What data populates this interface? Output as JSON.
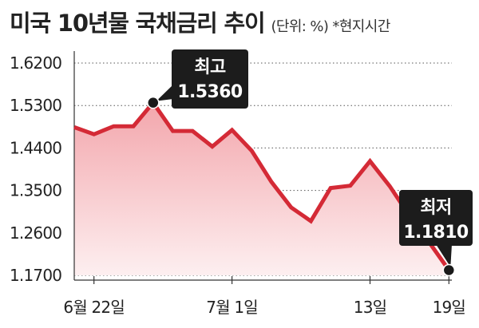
{
  "title": "미국 10년물 국채금리 추이",
  "subtitle": "(단위: %) *현지시간",
  "colors": {
    "line": "#d42a36",
    "area_top": "#f3a6ac",
    "area_bottom": "#fdeff0",
    "grid": "#555555",
    "callout_bg": "#1c1c1c",
    "marker": "#1a1a1a"
  },
  "chart_data": {
    "type": "area",
    "title": "미국 10년물 국채금리 추이",
    "subtitle": "(단위: %) *현지시간",
    "ylim": [
      1.17,
      1.62
    ],
    "yticks": [
      "1.6200",
      "1.5300",
      "1.4400",
      "1.3500",
      "1.2600",
      "1.1700"
    ],
    "ytick_values": [
      1.62,
      1.53,
      1.44,
      1.35,
      1.26,
      1.17
    ],
    "xticks": [
      {
        "label": "6월 22일",
        "index": 1
      },
      {
        "label": "7월 1일",
        "index": 8
      },
      {
        "label": "13일",
        "index": 15
      },
      {
        "label": "19일",
        "index": 19
      }
    ],
    "grid": true,
    "series": [
      {
        "values": [
          1.484,
          1.469,
          1.486,
          1.486,
          1.536,
          1.476,
          1.476,
          1.443,
          1.478,
          1.434,
          1.368,
          1.314,
          1.285,
          1.355,
          1.36,
          1.412,
          1.359,
          1.296,
          1.24,
          1.181
        ]
      }
    ],
    "annotations": [
      {
        "title": "최고",
        "value": "1.5360",
        "index": 4
      },
      {
        "title": "최저",
        "value": "1.1810",
        "index": 19
      }
    ]
  }
}
